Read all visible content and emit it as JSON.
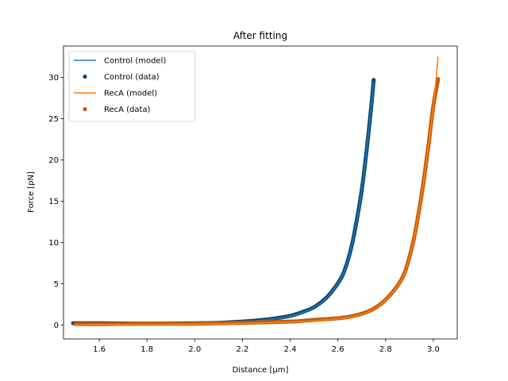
{
  "chart_data": {
    "type": "line",
    "title": "After fitting",
    "xlabel": "Distance [μm]",
    "ylabel": "Force [pN]",
    "xlim": [
      1.45,
      3.1
    ],
    "ylim": [
      -1.7,
      33.8
    ],
    "xticks": [
      1.6,
      1.8,
      2.0,
      2.2,
      2.4,
      2.6,
      2.8,
      3.0
    ],
    "xtick_labels": [
      "1.6",
      "1.8",
      "2.0",
      "2.2",
      "2.4",
      "2.6",
      "2.8",
      "3.0"
    ],
    "yticks": [
      0,
      5,
      10,
      15,
      20,
      25,
      30
    ],
    "ytick_labels": [
      "0",
      "5",
      "10",
      "15",
      "20",
      "25",
      "30"
    ],
    "grid": false,
    "legend_position": "top-left",
    "legend": [
      {
        "label": "Control (model)",
        "kind": "line",
        "color": "#1f77b4"
      },
      {
        "label": "Control (data)",
        "kind": "marker",
        "color": "#0e4a72"
      },
      {
        "label": "RecA (model)",
        "kind": "line",
        "color": "#ff7f0e"
      },
      {
        "label": "RecA (data)",
        "kind": "marker",
        "color": "#c55a08"
      }
    ],
    "series": [
      {
        "name": "Control (model)",
        "kind": "line",
        "color": "#1f77b4",
        "x": [
          1.49,
          1.6,
          1.8,
          2.0,
          2.1,
          2.2,
          2.3,
          2.35,
          2.4,
          2.45,
          2.5,
          2.55,
          2.58,
          2.6,
          2.62,
          2.64,
          2.66,
          2.68,
          2.7,
          2.72,
          2.74,
          2.75
        ],
        "y": [
          0.05,
          0.07,
          0.1,
          0.16,
          0.22,
          0.35,
          0.6,
          0.8,
          1.05,
          1.5,
          2.1,
          3.2,
          4.2,
          5.0,
          6.0,
          7.6,
          9.8,
          12.8,
          16.3,
          21.0,
          26.5,
          29.5
        ]
      },
      {
        "name": "Control (data)",
        "kind": "marker",
        "color": "#0e4a72",
        "x": [
          1.49,
          1.6,
          1.8,
          2.0,
          2.1,
          2.2,
          2.3,
          2.35,
          2.4,
          2.45,
          2.5,
          2.55,
          2.58,
          2.6,
          2.62,
          2.64,
          2.66,
          2.68,
          2.7,
          2.72,
          2.74,
          2.75
        ],
        "y": [
          0.2,
          0.2,
          0.15,
          0.2,
          0.25,
          0.4,
          0.65,
          0.85,
          1.1,
          1.55,
          2.15,
          3.25,
          4.25,
          5.05,
          6.05,
          7.65,
          9.85,
          12.85,
          16.35,
          21.05,
          26.55,
          29.7
        ]
      },
      {
        "name": "RecA (model)",
        "kind": "line",
        "color": "#ff7f0e",
        "x": [
          1.5,
          1.6,
          1.8,
          2.0,
          2.2,
          2.4,
          2.5,
          2.6,
          2.65,
          2.7,
          2.75,
          2.8,
          2.85,
          2.88,
          2.9,
          2.92,
          2.94,
          2.96,
          2.98,
          3.0,
          3.02
        ],
        "y": [
          0.02,
          0.04,
          0.06,
          0.1,
          0.18,
          0.35,
          0.5,
          0.75,
          0.95,
          1.3,
          1.9,
          3.0,
          4.7,
          6.3,
          8.2,
          10.6,
          13.8,
          17.5,
          21.8,
          26.5,
          32.5
        ]
      },
      {
        "name": "RecA (data)",
        "kind": "marker",
        "color": "#c55a08",
        "x": [
          1.5,
          1.6,
          1.8,
          2.0,
          2.2,
          2.4,
          2.5,
          2.6,
          2.65,
          2.7,
          2.75,
          2.8,
          2.85,
          2.88,
          2.9,
          2.92,
          2.94,
          2.96,
          2.98,
          3.0,
          3.02
        ],
        "y": [
          0.1,
          0.1,
          0.15,
          0.15,
          0.25,
          0.4,
          0.6,
          0.8,
          1.0,
          1.35,
          1.95,
          3.05,
          4.75,
          6.35,
          8.25,
          10.65,
          13.85,
          17.55,
          21.85,
          26.55,
          29.8
        ]
      }
    ]
  }
}
